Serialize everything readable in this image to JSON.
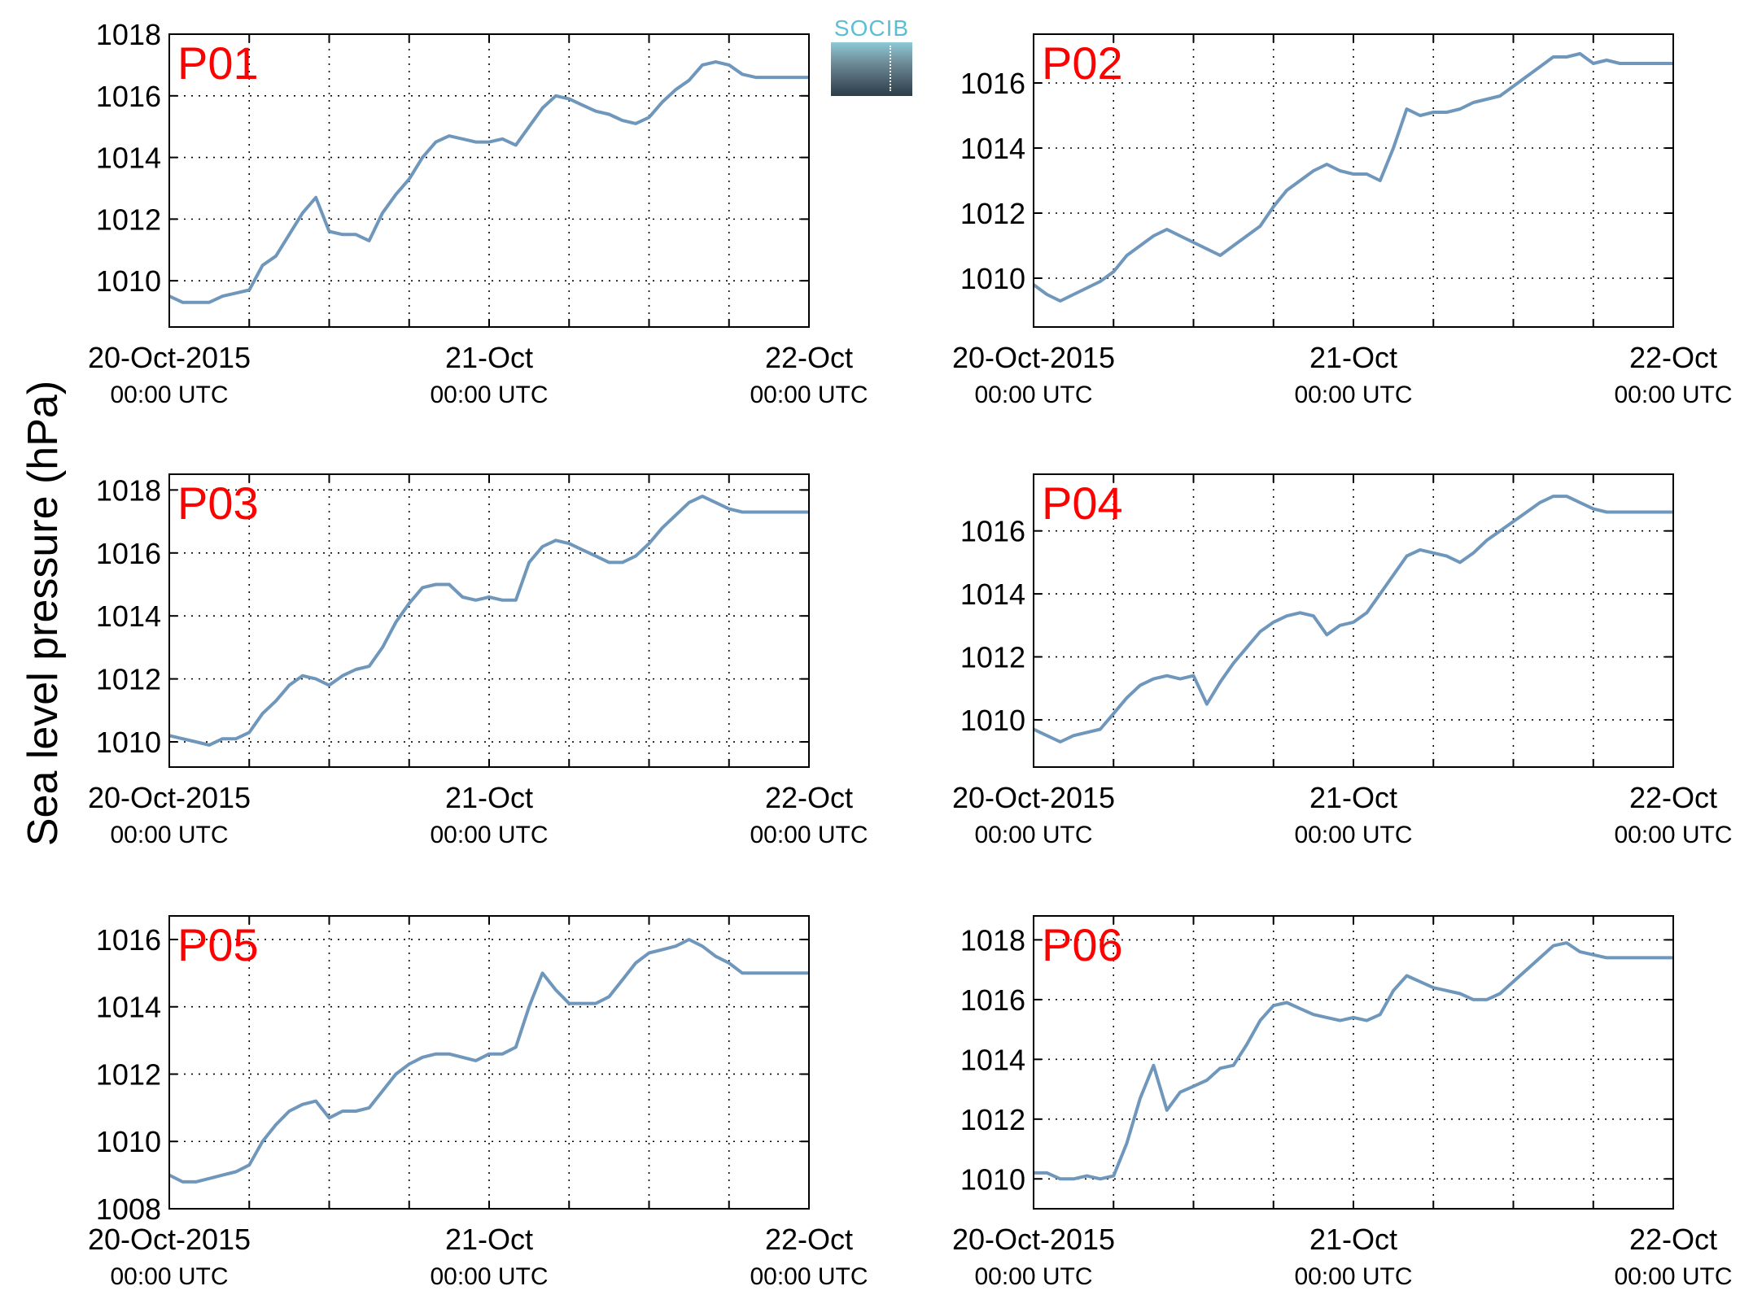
{
  "figure": {
    "ylabel": "Sea level pressure (hPa)",
    "logo_text": "SOCIB"
  },
  "colors": {
    "line": "#6f97bb",
    "panel_label": "#ff0000",
    "axis": "#000000"
  },
  "chart_data": [
    {
      "type": "line",
      "title": "P01",
      "x_ticks": [
        {
          "label": "20-Oct-2015",
          "sub": "00:00 UTC"
        },
        {
          "label": "21-Oct",
          "sub": "00:00 UTC"
        },
        {
          "label": "22-Oct",
          "sub": "00:00 UTC"
        }
      ],
      "xlim_hours": [
        0,
        48
      ],
      "ylim": [
        1008.5,
        1018
      ],
      "yticks": [
        1010,
        1012,
        1014,
        1016,
        1018
      ],
      "grid": true,
      "series": [
        {
          "x": [
            0,
            1,
            2,
            3,
            4,
            5,
            6,
            7,
            8,
            9,
            10,
            11,
            12,
            13,
            14,
            15,
            16,
            17,
            18,
            19,
            20,
            21,
            22,
            23,
            24,
            25,
            26,
            27,
            28,
            29,
            30,
            31,
            32,
            33,
            34,
            35,
            36,
            37,
            38,
            39,
            40,
            41,
            42,
            43,
            44,
            45,
            46,
            47,
            48
          ],
          "values": [
            1009.5,
            1009.3,
            1009.3,
            1009.3,
            1009.5,
            1009.6,
            1009.7,
            1010.5,
            1010.8,
            1011.5,
            1012.2,
            1012.7,
            1011.6,
            1011.5,
            1011.5,
            1011.3,
            1012.2,
            1012.8,
            1013.3,
            1014.0,
            1014.5,
            1014.7,
            1014.6,
            1014.5,
            1014.5,
            1014.6,
            1014.4,
            1015.0,
            1015.6,
            1016.0,
            1015.9,
            1015.7,
            1015.5,
            1015.4,
            1015.2,
            1015.1,
            1015.3,
            1015.8,
            1016.2,
            1016.5,
            1017.0,
            1017.1,
            1017.0,
            1016.7,
            1016.6,
            1016.6,
            1016.6,
            1016.6,
            1016.6
          ]
        }
      ]
    },
    {
      "type": "line",
      "title": "P02",
      "x_ticks": [
        {
          "label": "20-Oct-2015",
          "sub": "00:00 UTC"
        },
        {
          "label": "21-Oct",
          "sub": "00:00 UTC"
        },
        {
          "label": "22-Oct",
          "sub": "00:00 UTC"
        }
      ],
      "xlim_hours": [
        0,
        48
      ],
      "ylim": [
        1008.5,
        1017.5
      ],
      "yticks": [
        1010,
        1012,
        1014,
        1016
      ],
      "grid": true,
      "series": [
        {
          "x": [
            0,
            1,
            2,
            3,
            4,
            5,
            6,
            7,
            8,
            9,
            10,
            11,
            12,
            13,
            14,
            15,
            16,
            17,
            18,
            19,
            20,
            21,
            22,
            23,
            24,
            25,
            26,
            27,
            28,
            29,
            30,
            31,
            32,
            33,
            34,
            35,
            36,
            37,
            38,
            39,
            40,
            41,
            42,
            43,
            44,
            45,
            46,
            47,
            48
          ],
          "values": [
            1009.8,
            1009.5,
            1009.3,
            1009.5,
            1009.7,
            1009.9,
            1010.2,
            1010.7,
            1011.0,
            1011.3,
            1011.5,
            1011.3,
            1011.1,
            1010.9,
            1010.7,
            1011.0,
            1011.3,
            1011.6,
            1012.2,
            1012.7,
            1013.0,
            1013.3,
            1013.5,
            1013.3,
            1013.2,
            1013.2,
            1013.0,
            1014.0,
            1015.2,
            1015.0,
            1015.1,
            1015.1,
            1015.2,
            1015.4,
            1015.5,
            1015.6,
            1015.9,
            1016.2,
            1016.5,
            1016.8,
            1016.8,
            1016.9,
            1016.6,
            1016.7,
            1016.6,
            1016.6,
            1016.6,
            1016.6,
            1016.6
          ]
        }
      ]
    },
    {
      "type": "line",
      "title": "P03",
      "x_ticks": [
        {
          "label": "20-Oct-2015",
          "sub": "00:00 UTC"
        },
        {
          "label": "21-Oct",
          "sub": "00:00 UTC"
        },
        {
          "label": "22-Oct",
          "sub": "00:00 UTC"
        }
      ],
      "xlim_hours": [
        0,
        48
      ],
      "ylim": [
        1009.2,
        1018.5
      ],
      "yticks": [
        1010,
        1012,
        1014,
        1016,
        1018
      ],
      "grid": true,
      "series": [
        {
          "x": [
            0,
            1,
            2,
            3,
            4,
            5,
            6,
            7,
            8,
            9,
            10,
            11,
            12,
            13,
            14,
            15,
            16,
            17,
            18,
            19,
            20,
            21,
            22,
            23,
            24,
            25,
            26,
            27,
            28,
            29,
            30,
            31,
            32,
            33,
            34,
            35,
            36,
            37,
            38,
            39,
            40,
            41,
            42,
            43,
            44,
            45,
            46,
            47,
            48
          ],
          "values": [
            1010.2,
            1010.1,
            1010.0,
            1009.9,
            1010.1,
            1010.1,
            1010.3,
            1010.9,
            1011.3,
            1011.8,
            1012.1,
            1012.0,
            1011.8,
            1012.1,
            1012.3,
            1012.4,
            1013.0,
            1013.8,
            1014.4,
            1014.9,
            1015.0,
            1015.0,
            1014.6,
            1014.5,
            1014.6,
            1014.5,
            1014.5,
            1015.7,
            1016.2,
            1016.4,
            1016.3,
            1016.1,
            1015.9,
            1015.7,
            1015.7,
            1015.9,
            1016.3,
            1016.8,
            1017.2,
            1017.6,
            1017.8,
            1017.6,
            1017.4,
            1017.3,
            1017.3,
            1017.3,
            1017.3,
            1017.3,
            1017.3
          ]
        }
      ]
    },
    {
      "type": "line",
      "title": "P04",
      "x_ticks": [
        {
          "label": "20-Oct-2015",
          "sub": "00:00 UTC"
        },
        {
          "label": "21-Oct",
          "sub": "00:00 UTC"
        },
        {
          "label": "22-Oct",
          "sub": "00:00 UTC"
        }
      ],
      "xlim_hours": [
        0,
        48
      ],
      "ylim": [
        1008.5,
        1017.8
      ],
      "yticks": [
        1010,
        1012,
        1014,
        1016
      ],
      "grid": true,
      "series": [
        {
          "x": [
            0,
            1,
            2,
            3,
            4,
            5,
            6,
            7,
            8,
            9,
            10,
            11,
            12,
            13,
            14,
            15,
            16,
            17,
            18,
            19,
            20,
            21,
            22,
            23,
            24,
            25,
            26,
            27,
            28,
            29,
            30,
            31,
            32,
            33,
            34,
            35,
            36,
            37,
            38,
            39,
            40,
            41,
            42,
            43,
            44,
            45,
            46,
            47,
            48
          ],
          "values": [
            1009.7,
            1009.5,
            1009.3,
            1009.5,
            1009.6,
            1009.7,
            1010.2,
            1010.7,
            1011.1,
            1011.3,
            1011.4,
            1011.3,
            1011.4,
            1010.5,
            1011.2,
            1011.8,
            1012.3,
            1012.8,
            1013.1,
            1013.3,
            1013.4,
            1013.3,
            1012.7,
            1013.0,
            1013.1,
            1013.4,
            1014.0,
            1014.6,
            1015.2,
            1015.4,
            1015.3,
            1015.2,
            1015.0,
            1015.3,
            1015.7,
            1016.0,
            1016.3,
            1016.6,
            1016.9,
            1017.1,
            1017.1,
            1016.9,
            1016.7,
            1016.6,
            1016.6,
            1016.6,
            1016.6,
            1016.6,
            1016.6
          ]
        }
      ]
    },
    {
      "type": "line",
      "title": "P05",
      "x_ticks": [
        {
          "label": "20-Oct-2015",
          "sub": "00:00 UTC"
        },
        {
          "label": "21-Oct",
          "sub": "00:00 UTC"
        },
        {
          "label": "22-Oct",
          "sub": "00:00 UTC"
        }
      ],
      "xlim_hours": [
        0,
        48
      ],
      "ylim": [
        1008,
        1016.7
      ],
      "yticks": [
        1008,
        1010,
        1012,
        1014,
        1016
      ],
      "grid": true,
      "series": [
        {
          "x": [
            0,
            1,
            2,
            3,
            4,
            5,
            6,
            7,
            8,
            9,
            10,
            11,
            12,
            13,
            14,
            15,
            16,
            17,
            18,
            19,
            20,
            21,
            22,
            23,
            24,
            25,
            26,
            27,
            28,
            29,
            30,
            31,
            32,
            33,
            34,
            35,
            36,
            37,
            38,
            39,
            40,
            41,
            42,
            43,
            44,
            45,
            46,
            47,
            48
          ],
          "values": [
            1009.0,
            1008.8,
            1008.8,
            1008.9,
            1009.0,
            1009.1,
            1009.3,
            1010.0,
            1010.5,
            1010.9,
            1011.1,
            1011.2,
            1010.7,
            1010.9,
            1010.9,
            1011.0,
            1011.5,
            1012.0,
            1012.3,
            1012.5,
            1012.6,
            1012.6,
            1012.5,
            1012.4,
            1012.6,
            1012.6,
            1012.8,
            1014.0,
            1015.0,
            1014.5,
            1014.1,
            1014.1,
            1014.1,
            1014.3,
            1014.8,
            1015.3,
            1015.6,
            1015.7,
            1015.8,
            1016.0,
            1015.8,
            1015.5,
            1015.3,
            1015.0,
            1015.0,
            1015.0,
            1015.0,
            1015.0,
            1015.0
          ]
        }
      ]
    },
    {
      "type": "line",
      "title": "P06",
      "x_ticks": [
        {
          "label": "20-Oct-2015",
          "sub": "00:00 UTC"
        },
        {
          "label": "21-Oct",
          "sub": "00:00 UTC"
        },
        {
          "label": "22-Oct",
          "sub": "00:00 UTC"
        }
      ],
      "xlim_hours": [
        0,
        48
      ],
      "ylim": [
        1009,
        1018.8
      ],
      "yticks": [
        1010,
        1012,
        1014,
        1016,
        1018
      ],
      "grid": true,
      "series": [
        {
          "x": [
            0,
            1,
            2,
            3,
            4,
            5,
            6,
            7,
            8,
            9,
            10,
            11,
            12,
            13,
            14,
            15,
            16,
            17,
            18,
            19,
            20,
            21,
            22,
            23,
            24,
            25,
            26,
            27,
            28,
            29,
            30,
            31,
            32,
            33,
            34,
            35,
            36,
            37,
            38,
            39,
            40,
            41,
            42,
            43,
            44,
            45,
            46,
            47,
            48
          ],
          "values": [
            1010.2,
            1010.2,
            1010.0,
            1010.0,
            1010.1,
            1010.0,
            1010.1,
            1011.2,
            1012.7,
            1013.8,
            1012.3,
            1012.9,
            1013.1,
            1013.3,
            1013.7,
            1013.8,
            1014.5,
            1015.3,
            1015.8,
            1015.9,
            1015.7,
            1015.5,
            1015.4,
            1015.3,
            1015.4,
            1015.3,
            1015.5,
            1016.3,
            1016.8,
            1016.6,
            1016.4,
            1016.3,
            1016.2,
            1016.0,
            1016.0,
            1016.2,
            1016.6,
            1017.0,
            1017.4,
            1017.8,
            1017.9,
            1017.6,
            1017.5,
            1017.4,
            1017.4,
            1017.4,
            1017.4,
            1017.4,
            1017.4
          ]
        }
      ]
    }
  ]
}
